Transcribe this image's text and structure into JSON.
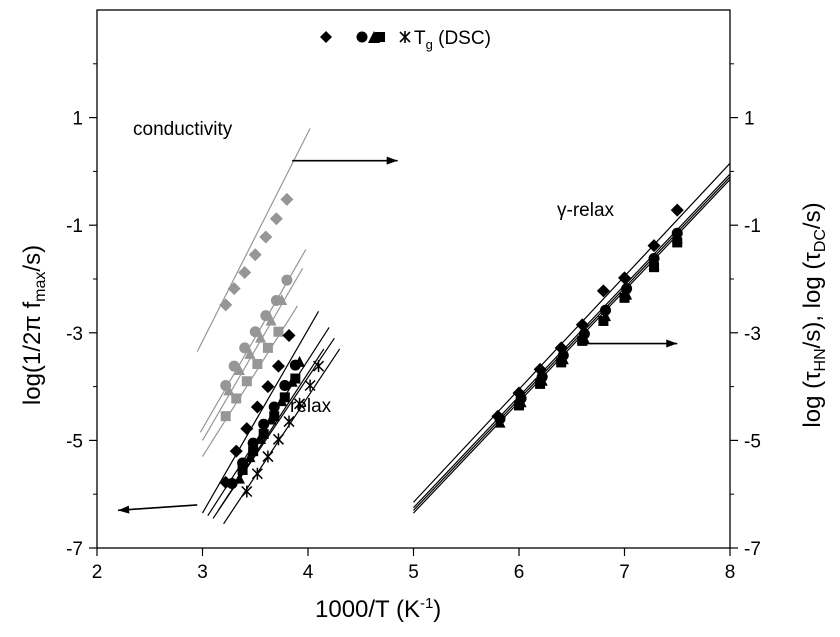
{
  "chart_data": {
    "type": "scatter",
    "xlabel": "1000/T (K⁻¹)",
    "xlabel_main": "1000/T (K",
    "xlabel_sup": "-1",
    "xlabel_close": ")",
    "ylabel_left": "log(1/2πfₘₐₓ/s)",
    "ylabel_left_main": "log(1/2π f",
    "ylabel_left_sub": "max",
    "ylabel_left_close": "/s)",
    "ylabel_right_a": "log (τ",
    "ylabel_right_sub1": "HN",
    "ylabel_right_b": "/s), log (τ",
    "ylabel_right_sub2": "DC",
    "ylabel_right_c": "/s)",
    "xlim": [
      2,
      8
    ],
    "ylim": [
      -7,
      3
    ],
    "x_ticks": [
      2,
      3,
      4,
      5,
      6,
      7,
      8
    ],
    "y_ticks": [
      -7,
      -5,
      -3,
      -1,
      1
    ],
    "y_tick_labels": [
      "-7",
      "-5",
      "-3",
      "-1",
      "1"
    ],
    "legend_text": "T",
    "legend_sub": "g",
    "legend_suffix": " (DSC)",
    "annotations": {
      "conductivity": "conductivity",
      "alpha_relax": "relax",
      "gamma_relax": "γ-relax"
    },
    "colors": {
      "gray": "#969696",
      "black": "#000000"
    },
    "conductivity_series": [
      {
        "name": "diamond",
        "marker": "diamond",
        "color": "#969696",
        "points": [
          [
            3.22,
            -2.48
          ],
          [
            3.3,
            -2.18
          ],
          [
            3.4,
            -1.88
          ],
          [
            3.5,
            -1.55
          ],
          [
            3.6,
            -1.22
          ],
          [
            3.7,
            -0.88
          ],
          [
            3.8,
            -0.52
          ]
        ],
        "fit": [
          [
            2.95,
            -3.35
          ],
          [
            4.02,
            0.8
          ]
        ]
      },
      {
        "name": "circle",
        "marker": "circle",
        "color": "#969696",
        "points": [
          [
            3.22,
            -3.98
          ],
          [
            3.3,
            -3.62
          ],
          [
            3.4,
            -3.28
          ],
          [
            3.5,
            -2.98
          ],
          [
            3.6,
            -2.68
          ],
          [
            3.7,
            -2.4
          ],
          [
            3.8,
            -2.02
          ]
        ],
        "fit": [
          [
            2.98,
            -4.85
          ],
          [
            3.98,
            -1.45
          ]
        ]
      },
      {
        "name": "triangle",
        "marker": "triangle",
        "color": "#969696",
        "points": [
          [
            3.25,
            -4.08
          ],
          [
            3.35,
            -3.7
          ],
          [
            3.45,
            -3.4
          ],
          [
            3.55,
            -3.1
          ],
          [
            3.65,
            -2.78
          ],
          [
            3.75,
            -2.4
          ]
        ],
        "fit": [
          [
            3.0,
            -5.0
          ],
          [
            3.95,
            -1.8
          ]
        ]
      },
      {
        "name": "square",
        "marker": "square",
        "color": "#969696",
        "points": [
          [
            3.22,
            -4.55
          ],
          [
            3.32,
            -4.22
          ],
          [
            3.42,
            -3.9
          ],
          [
            3.52,
            -3.58
          ],
          [
            3.62,
            -3.28
          ],
          [
            3.72,
            -2.98
          ]
        ],
        "fit": [
          [
            3.0,
            -5.3
          ],
          [
            3.9,
            -2.5
          ]
        ]
      }
    ],
    "alpha_series": [
      {
        "name": "diamond",
        "marker": "diamond",
        "color": "#000000",
        "points": [
          [
            3.22,
            -5.78
          ],
          [
            3.32,
            -5.2
          ],
          [
            3.42,
            -4.78
          ],
          [
            3.52,
            -4.38
          ],
          [
            3.62,
            -4.0
          ],
          [
            3.72,
            -3.62
          ],
          [
            3.82,
            -3.05
          ]
        ],
        "fit": [
          [
            3.0,
            -6.35
          ],
          [
            4.1,
            -2.6
          ]
        ]
      },
      {
        "name": "circle",
        "marker": "circle",
        "color": "#000000",
        "points": [
          [
            3.28,
            -5.8
          ],
          [
            3.38,
            -5.42
          ],
          [
            3.48,
            -5.05
          ],
          [
            3.58,
            -4.7
          ],
          [
            3.68,
            -4.38
          ],
          [
            3.78,
            -3.98
          ],
          [
            3.88,
            -3.6
          ]
        ],
        "fit": [
          [
            3.05,
            -6.4
          ],
          [
            4.2,
            -2.9
          ]
        ]
      },
      {
        "name": "triangle",
        "marker": "triangle",
        "color": "#000000",
        "points": [
          [
            3.35,
            -5.72
          ],
          [
            3.45,
            -5.32
          ],
          [
            3.55,
            -4.98
          ],
          [
            3.65,
            -4.62
          ],
          [
            3.75,
            -4.28
          ],
          [
            3.85,
            -3.92
          ],
          [
            3.92,
            -3.55
          ]
        ],
        "fit": [
          [
            3.1,
            -6.45
          ],
          [
            4.25,
            -3.1
          ]
        ]
      },
      {
        "name": "square",
        "marker": "square",
        "color": "#000000",
        "points": [
          [
            3.38,
            -5.55
          ],
          [
            3.48,
            -5.2
          ],
          [
            3.58,
            -4.88
          ],
          [
            3.68,
            -4.55
          ],
          [
            3.78,
            -4.2
          ],
          [
            3.88,
            -3.85
          ]
        ],
        "fit": [
          [
            3.15,
            -6.3
          ],
          [
            4.15,
            -3.3
          ]
        ]
      },
      {
        "name": "cross",
        "marker": "cross",
        "color": "#000000",
        "points": [
          [
            3.42,
            -5.95
          ],
          [
            3.52,
            -5.62
          ],
          [
            3.62,
            -5.3
          ],
          [
            3.72,
            -4.98
          ],
          [
            3.82,
            -4.65
          ],
          [
            3.92,
            -4.32
          ],
          [
            4.02,
            -3.98
          ],
          [
            4.1,
            -3.62
          ]
        ],
        "fit": [
          [
            3.2,
            -6.55
          ],
          [
            4.3,
            -3.3
          ]
        ]
      }
    ],
    "gamma_series": [
      {
        "name": "diamond",
        "marker": "diamond",
        "color": "#000000",
        "points": [
          [
            5.8,
            -4.55
          ],
          [
            6.0,
            -4.12
          ],
          [
            6.2,
            -3.68
          ],
          [
            6.4,
            -3.28
          ],
          [
            6.6,
            -2.85
          ],
          [
            6.8,
            -2.22
          ],
          [
            7.0,
            -1.98
          ],
          [
            7.28,
            -1.38
          ],
          [
            7.5,
            -0.72
          ]
        ],
        "fit": [
          [
            5.0,
            -6.15
          ],
          [
            8.0,
            0.15
          ]
        ]
      },
      {
        "name": "circle",
        "marker": "circle",
        "color": "#000000",
        "points": [
          [
            5.82,
            -4.6
          ],
          [
            6.02,
            -4.22
          ],
          [
            6.22,
            -3.82
          ],
          [
            6.42,
            -3.42
          ],
          [
            6.62,
            -3.02
          ],
          [
            6.82,
            -2.58
          ],
          [
            7.02,
            -2.18
          ],
          [
            7.28,
            -1.62
          ],
          [
            7.5,
            -1.15
          ]
        ],
        "fit": [
          [
            5.0,
            -6.25
          ],
          [
            8.0,
            -0.05
          ]
        ]
      },
      {
        "name": "triangle",
        "marker": "triangle",
        "color": "#000000",
        "points": [
          [
            5.82,
            -4.68
          ],
          [
            6.02,
            -4.3
          ],
          [
            6.22,
            -3.9
          ],
          [
            6.42,
            -3.5
          ],
          [
            6.62,
            -3.12
          ],
          [
            6.82,
            -2.7
          ],
          [
            7.02,
            -2.3
          ],
          [
            7.28,
            -1.75
          ],
          [
            7.5,
            -1.25
          ]
        ],
        "fit": [
          [
            5.0,
            -6.3
          ],
          [
            8.0,
            -0.1
          ]
        ]
      },
      {
        "name": "square",
        "marker": "square",
        "color": "#000000",
        "points": [
          [
            6.0,
            -4.35
          ],
          [
            6.2,
            -3.95
          ],
          [
            6.4,
            -3.55
          ],
          [
            6.6,
            -3.15
          ],
          [
            6.8,
            -2.78
          ],
          [
            7.0,
            -2.35
          ],
          [
            7.28,
            -1.78
          ],
          [
            7.5,
            -1.32
          ]
        ],
        "fit": [
          [
            5.0,
            -6.35
          ],
          [
            8.0,
            -0.15
          ]
        ]
      }
    ],
    "arrows": [
      {
        "from": [
          3.85,
          0.2
        ],
        "to": [
          4.85,
          0.2
        ]
      },
      {
        "from": [
          6.55,
          -3.2
        ],
        "to": [
          7.5,
          -3.2
        ]
      },
      {
        "from": [
          2.95,
          -6.2
        ],
        "to": [
          2.2,
          -6.3
        ]
      }
    ]
  }
}
